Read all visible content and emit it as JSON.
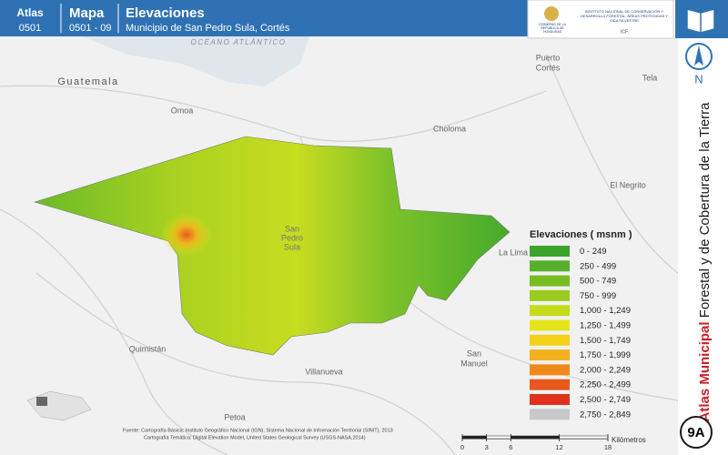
{
  "header": {
    "atlas_label": "Atlas",
    "atlas_code": "0501",
    "map_label": "Mapa",
    "map_code": "0501 - 09",
    "title": "Elevaciones",
    "subtitle": "Municipio de San Pedro Sula, Cortés",
    "logo_left": "GOBIERNO DE LA REPÚBLICA DE HONDURAS",
    "logo_right": "INSTITUTO NACIONAL DE CONSERVACIÓN Y DESARROLLO FORESTAL, ÁREAS PROTEGIDAS Y VIDA SILVESTRE",
    "logo_code": "ICF"
  },
  "map_labels": [
    "OCÉANO ATLÁNTICO",
    "Guatemala",
    "Omoa",
    "Puerto",
    "Cortés",
    "Tela",
    "Choloma",
    "El Negrito",
    "San",
    "Pedro",
    "Sula",
    "La Lima",
    "Quimistán",
    "San",
    "Manuel",
    "Villanueva",
    "Petoa"
  ],
  "legend": {
    "title": "Elevaciones ( msnm )",
    "items": [
      {
        "label": "0 - 249",
        "color": "#3aa52a"
      },
      {
        "label": "250 - 499",
        "color": "#56b02b"
      },
      {
        "label": "500 - 749",
        "color": "#78bd22"
      },
      {
        "label": "750 - 999",
        "color": "#9acb1e"
      },
      {
        "label": "1,000 - 1,249",
        "color": "#c4dc1c"
      },
      {
        "label": "1,250 - 1,499",
        "color": "#e6e51d"
      },
      {
        "label": "1,500 - 1,749",
        "color": "#f4d019"
      },
      {
        "label": "1,750 - 1,999",
        "color": "#f3b21d"
      },
      {
        "label": "2,000 - 2,249",
        "color": "#ef8a1a"
      },
      {
        "label": "2,250 - 2,499",
        "color": "#e8581d"
      },
      {
        "label": "2,500 - 2,749",
        "color": "#e0311c"
      },
      {
        "label": "2,750 - 2,849",
        "color": "#c8c8c8"
      }
    ]
  },
  "side": {
    "title_bold": "Atlas Municipal",
    "title_rest": "Forestal y de Cobertura de la Tierra",
    "north": "N",
    "sheet": "9A"
  },
  "source": {
    "line1": "Fuente: Cartografía Básica: Instituto Geográfico Nacional (IGN), Sistema Nacional de Información Territorial (SINIT), 2013",
    "line2": "Cartografía Temática: Digital Elevation Model, United States Geological Survey (USGS-NASA,2014)"
  },
  "scale": {
    "ticks": [
      0,
      3,
      6,
      12,
      18
    ],
    "unit": "Kilómetros"
  }
}
